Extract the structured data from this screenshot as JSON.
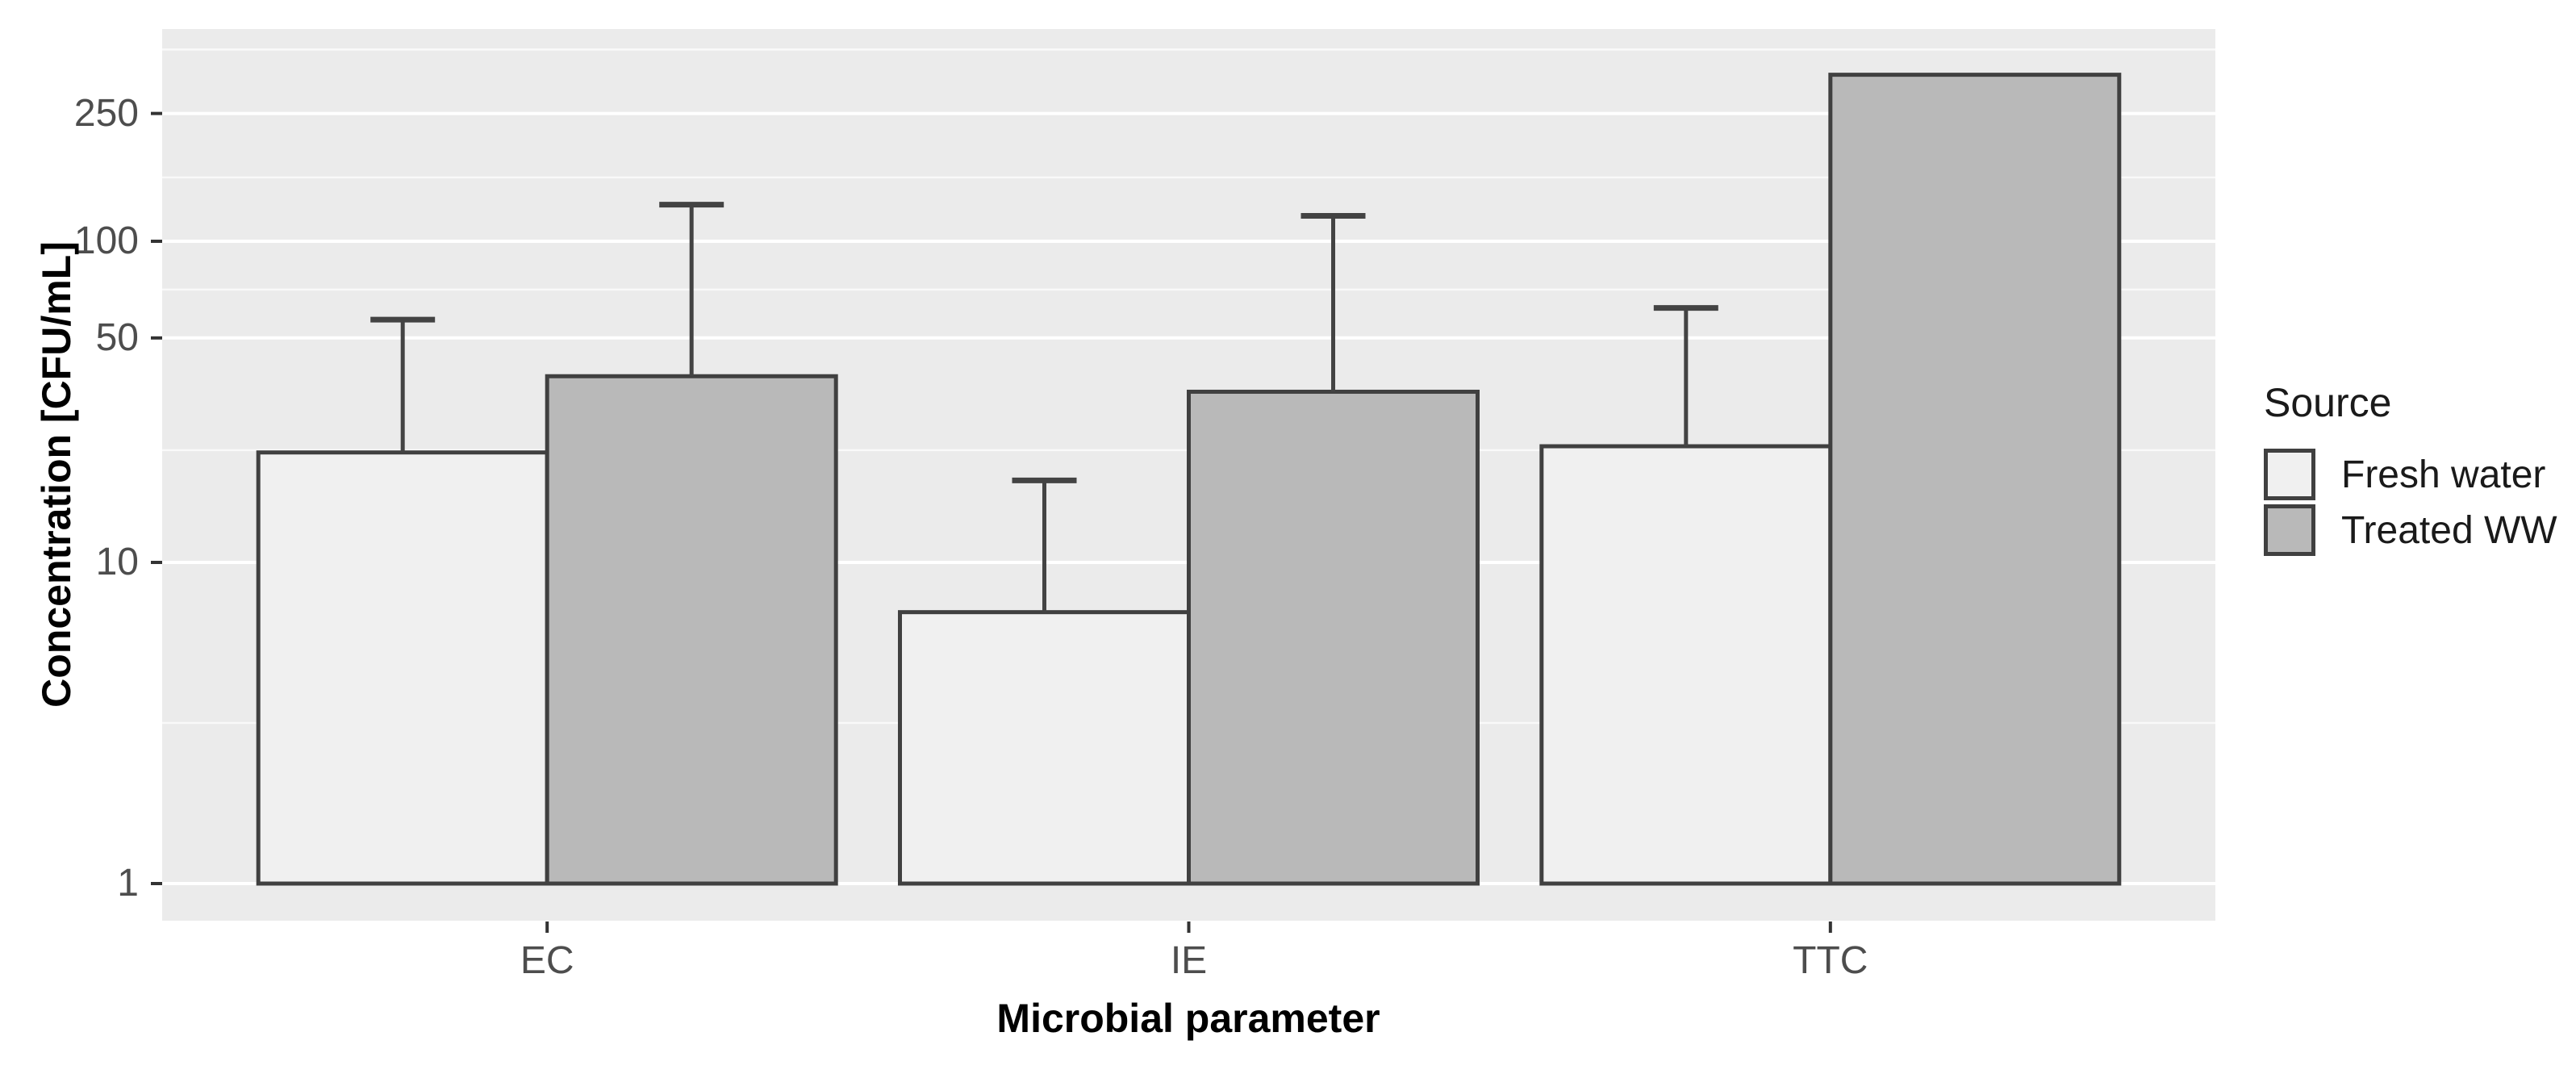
{
  "chart_data": {
    "type": "bar",
    "title": "",
    "xlabel": "Microbial parameter",
    "ylabel": "Concentration [CFU/mL]",
    "categories": [
      "EC",
      "IE",
      "TTC"
    ],
    "series": [
      {
        "name": "Fresh water",
        "values": [
          22,
          7,
          23
        ],
        "error_high": [
          57,
          18,
          62
        ]
      },
      {
        "name": "Treated WW",
        "values": [
          38,
          34,
          330
        ],
        "error_high": [
          130,
          120,
          null
        ]
      }
    ],
    "scale": "log10",
    "y_breaks": [
      1,
      10,
      50,
      100,
      250
    ],
    "y_break_labels": [
      "1",
      "10",
      "50",
      "100",
      "250"
    ],
    "y_minor_breaks": [
      3.162,
      22.36,
      70.71,
      158.1,
      395.3
    ],
    "ylim": [
      0.77,
      458
    ],
    "grid": true,
    "legend": {
      "title": "Source",
      "position": "right",
      "items": [
        "Fresh water",
        "Treated WW"
      ]
    }
  },
  "colors": {
    "panel_bg": "#ebebeb",
    "grid_major": "#ffffff",
    "grid_minor": "#f7f7f7",
    "bar_fill_fresh_water": "#f0f0f0",
    "bar_fill_treated_ww": "#b9b9b9",
    "bar_border": "#404040",
    "error_bar": "#434343",
    "tick_mark": "#333333",
    "tick_label": "#4d4d4d",
    "axis_title": "#000000",
    "legend_text": "#1a1a1a"
  }
}
